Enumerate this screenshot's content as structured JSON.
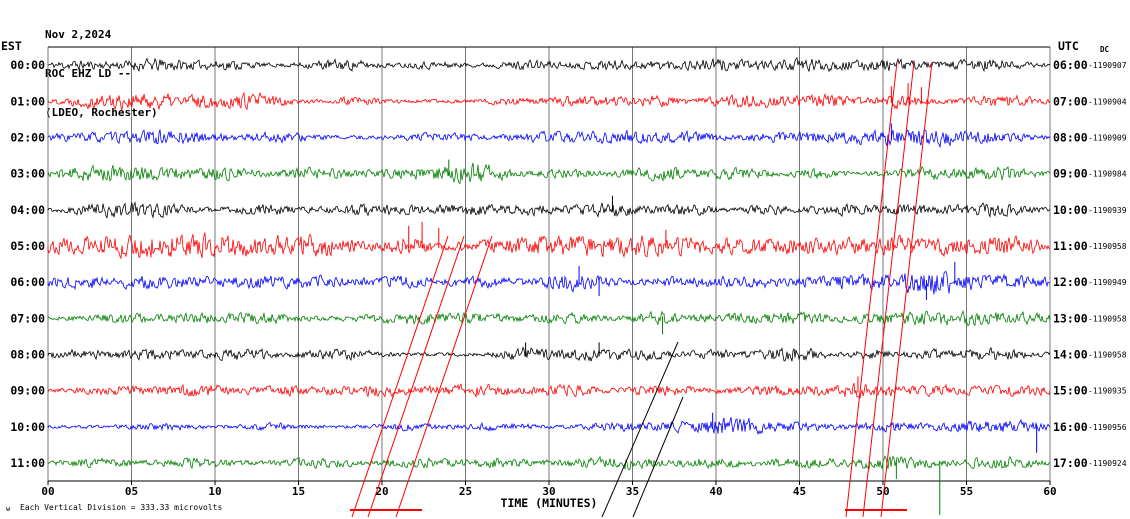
{
  "header": {
    "date": "Nov 2,2024",
    "station": "ROC EHZ LD --",
    "network": "(LDEO, Rochester)",
    "left_timezone": "EST",
    "right_timezone": "UTC",
    "dc_label": "DC"
  },
  "footer": {
    "scale_note": "Each Vertical Division =  333.33 microvolts",
    "corner_mark": "w"
  },
  "chart_data": {
    "type": "line",
    "title": "ROC EHZ LD -- (LDEO, Rochester) helicorder, Nov 2,2024",
    "xlabel": "TIME (MINUTES)",
    "x_range": [
      0,
      60
    ],
    "x_ticks": [
      "00",
      "05",
      "10",
      "15",
      "20",
      "25",
      "30",
      "35",
      "40",
      "45",
      "50",
      "55",
      "60"
    ],
    "grid_color": "#777777",
    "trace_color_cycle": [
      "#000000",
      "#ff0000",
      "#0000ff",
      "#008000"
    ],
    "rows": [
      {
        "est": "00:00",
        "utc": "06:00",
        "counter": "-1190907",
        "color": "#000000",
        "seed": 11,
        "base": 2.2,
        "bursts": [
          [
            1.5,
            1,
            4
          ],
          [
            6.5,
            2,
            6
          ],
          [
            11,
            1,
            4
          ],
          [
            17.5,
            1.5,
            5
          ],
          [
            23,
            1,
            3
          ],
          [
            29,
            1.5,
            4
          ],
          [
            33.5,
            1,
            5
          ],
          [
            36.5,
            1,
            4
          ],
          [
            40,
            1.5,
            6
          ],
          [
            45.5,
            2,
            6
          ],
          [
            50.5,
            1.5,
            5
          ],
          [
            56,
            1.5,
            7
          ]
        ],
        "spikes": []
      },
      {
        "est": "01:00",
        "utc": "07:00",
        "counter": "-1190904",
        "color": "#ff0000",
        "seed": 22,
        "base": 2.2,
        "bursts": [
          [
            3,
            1.5,
            5
          ],
          [
            6,
            2,
            7
          ],
          [
            10.5,
            2,
            6
          ],
          [
            13,
            1,
            5
          ],
          [
            18.5,
            1,
            4
          ],
          [
            27.5,
            1,
            3
          ],
          [
            32,
            1.5,
            5
          ],
          [
            36,
            1.5,
            5
          ],
          [
            42,
            2,
            6
          ],
          [
            46.5,
            1.5,
            6
          ],
          [
            51,
            1,
            7
          ],
          [
            57,
            1.5,
            6
          ]
        ],
        "spikes": [
          [
            50.5,
            15,
            1
          ],
          [
            51.5,
            18,
            1
          ],
          [
            52.3,
            14,
            1
          ]
        ]
      },
      {
        "est": "02:00",
        "utc": "08:00",
        "counter": "-1190909",
        "color": "#0000ff",
        "seed": 33,
        "base": 2.4,
        "bursts": [
          [
            2,
            1.5,
            4
          ],
          [
            7,
            2,
            7
          ],
          [
            13.5,
            1.5,
            5
          ],
          [
            23.5,
            1.5,
            4
          ],
          [
            30,
            1.5,
            5
          ],
          [
            34,
            1.5,
            6
          ],
          [
            38,
            1.5,
            5
          ],
          [
            44,
            1.5,
            5
          ],
          [
            50,
            2.5,
            7
          ],
          [
            53,
            1,
            6
          ],
          [
            56.5,
            1.5,
            5
          ]
        ],
        "spikes": [
          [
            50.5,
            14,
            1
          ]
        ]
      },
      {
        "est": "03:00",
        "utc": "09:00",
        "counter": "-1190984",
        "color": "#008000",
        "seed": 44,
        "base": 2.4,
        "bursts": [
          [
            2.5,
            1.5,
            6
          ],
          [
            6,
            2,
            7
          ],
          [
            10.5,
            1.5,
            6
          ],
          [
            16,
            1.5,
            5
          ],
          [
            23.5,
            2.5,
            7
          ],
          [
            26,
            1,
            6
          ],
          [
            31,
            1,
            4
          ],
          [
            36.5,
            1.5,
            6
          ],
          [
            41,
            1.5,
            5
          ],
          [
            46,
            1,
            4
          ],
          [
            52.5,
            1.5,
            6
          ],
          [
            57,
            1.5,
            6
          ]
        ],
        "spikes": [
          [
            24,
            14,
            1
          ]
        ]
      },
      {
        "est": "04:00",
        "utc": "10:00",
        "counter": "-1190939",
        "color": "#000000",
        "seed": 55,
        "base": 2.2,
        "bursts": [
          [
            3.5,
            1.5,
            7
          ],
          [
            6.5,
            1.5,
            6
          ],
          [
            13,
            1.5,
            5
          ],
          [
            19.5,
            2,
            5
          ],
          [
            25,
            1.5,
            5
          ],
          [
            29,
            1.5,
            5
          ],
          [
            33.5,
            1.5,
            7
          ],
          [
            38,
            1.5,
            5
          ],
          [
            43,
            1,
            4
          ],
          [
            47.5,
            1.5,
            5
          ],
          [
            52,
            1.5,
            5
          ],
          [
            56.5,
            1.5,
            6
          ]
        ],
        "spikes": [
          [
            33.8,
            14,
            1
          ]
        ]
      },
      {
        "est": "05:00",
        "utc": "11:00",
        "counter": "-1190958",
        "color": "#ff0000",
        "seed": 66,
        "base": 3.5,
        "bursts": [
          [
            3,
            3,
            7
          ],
          [
            8,
            3,
            8
          ],
          [
            13,
            3,
            7
          ],
          [
            16.5,
            1.5,
            6
          ],
          [
            21.5,
            1,
            8
          ],
          [
            29,
            2.5,
            7
          ],
          [
            33,
            2,
            7
          ],
          [
            36.5,
            1.5,
            8
          ],
          [
            40,
            1.5,
            5
          ],
          [
            45,
            2.5,
            7
          ],
          [
            50,
            2,
            6
          ],
          [
            54,
            2,
            7
          ],
          [
            58,
            1.5,
            7
          ]
        ],
        "spikes": [
          [
            21.6,
            20,
            1
          ],
          [
            22.4,
            24,
            1
          ],
          [
            23.4,
            18,
            1
          ],
          [
            37,
            16,
            1
          ]
        ]
      },
      {
        "est": "06:00",
        "utc": "12:00",
        "counter": "-1190949",
        "color": "#0000ff",
        "seed": 77,
        "base": 2.8,
        "bursts": [
          [
            2,
            2,
            5
          ],
          [
            6.5,
            2,
            5
          ],
          [
            12,
            2,
            5
          ],
          [
            16,
            1.5,
            5
          ],
          [
            21,
            1.5,
            5
          ],
          [
            26,
            1.5,
            4
          ],
          [
            31.5,
            1.5,
            8
          ],
          [
            38,
            1.5,
            4
          ],
          [
            42,
            1.5,
            5
          ],
          [
            47,
            1.5,
            5
          ],
          [
            51.5,
            2,
            8
          ],
          [
            54,
            1.5,
            8
          ],
          [
            58,
            1.5,
            6
          ]
        ],
        "spikes": [
          [
            31.8,
            16,
            1
          ],
          [
            33,
            14,
            -1
          ],
          [
            52.6,
            18,
            -1
          ],
          [
            54.3,
            20,
            1
          ]
        ]
      },
      {
        "est": "07:00",
        "utc": "13:00",
        "counter": "-1190958",
        "color": "#008000",
        "seed": 88,
        "base": 2.6,
        "bursts": [
          [
            4.5,
            1.5,
            4
          ],
          [
            9,
            1.5,
            4
          ],
          [
            13,
            1.5,
            5
          ],
          [
            21.5,
            2,
            5
          ],
          [
            26,
            1.5,
            4
          ],
          [
            31,
            1.5,
            4
          ],
          [
            36.5,
            1,
            6
          ],
          [
            41,
            1.5,
            4
          ],
          [
            45,
            1.5,
            5
          ],
          [
            50,
            1.5,
            4
          ],
          [
            54,
            2,
            7
          ],
          [
            58,
            1.5,
            5
          ]
        ],
        "spikes": [
          [
            36.8,
            16,
            -1
          ]
        ]
      },
      {
        "est": "08:00",
        "utc": "14:00",
        "counter": "-1190958",
        "color": "#000000",
        "seed": 99,
        "base": 2.2,
        "bursts": [
          [
            2,
            1.5,
            4
          ],
          [
            6.5,
            1.5,
            5
          ],
          [
            11.5,
            1.5,
            6
          ],
          [
            17.5,
            1.5,
            5
          ],
          [
            28.5,
            1,
            7
          ],
          [
            32.5,
            1.5,
            7
          ],
          [
            36,
            1,
            4
          ],
          [
            40,
            1,
            4
          ],
          [
            44.5,
            1.5,
            7
          ],
          [
            49.5,
            1,
            4
          ],
          [
            53,
            1,
            4
          ],
          [
            56.5,
            1.5,
            6
          ]
        ],
        "spikes": [
          [
            28.6,
            12,
            1
          ],
          [
            33,
            12,
            1
          ]
        ]
      },
      {
        "est": "09:00",
        "utc": "15:00",
        "counter": "-1190935",
        "color": "#ff0000",
        "seed": 110,
        "base": 2.4,
        "bursts": [
          [
            4,
            1.5,
            4
          ],
          [
            9,
            1.5,
            6
          ],
          [
            14,
            1.5,
            4
          ],
          [
            19.5,
            2,
            5
          ],
          [
            25.5,
            2,
            5
          ],
          [
            31,
            1.5,
            5
          ],
          [
            37,
            1.5,
            5
          ],
          [
            43,
            1.5,
            4
          ],
          [
            48.5,
            2,
            7
          ],
          [
            53.5,
            1.5,
            4
          ],
          [
            58,
            1.5,
            5
          ]
        ],
        "spikes": [
          [
            48.5,
            14,
            1
          ]
        ]
      },
      {
        "est": "10:00",
        "utc": "16:00",
        "counter": "-1190956",
        "color": "#0000ff",
        "seed": 121,
        "base": 2.0,
        "bursts": [
          [
            7,
            1.5,
            3
          ],
          [
            13.5,
            1.5,
            3
          ],
          [
            21.5,
            1.5,
            3
          ],
          [
            27,
            1.5,
            3
          ],
          [
            34,
            1.5,
            4
          ],
          [
            39.5,
            2,
            7
          ],
          [
            41.5,
            1,
            6
          ],
          [
            45,
            1.5,
            4
          ],
          [
            50.5,
            1.5,
            4
          ],
          [
            55,
            1.5,
            4
          ],
          [
            58,
            1.5,
            6
          ]
        ],
        "spikes": [
          [
            39.8,
            14,
            1
          ],
          [
            59.2,
            26,
            -1
          ]
        ]
      },
      {
        "est": "11:00",
        "utc": "17:00",
        "counter": "-1190924",
        "color": "#008000",
        "seed": 132,
        "base": 2.4,
        "bursts": [
          [
            3,
            1.5,
            4
          ],
          [
            9,
            1.5,
            4
          ],
          [
            16,
            1.5,
            4
          ],
          [
            22,
            1.5,
            4
          ],
          [
            27,
            1.5,
            4
          ],
          [
            34,
            2,
            6
          ],
          [
            40,
            1.5,
            4
          ],
          [
            45,
            1.5,
            4
          ],
          [
            50.5,
            2,
            6
          ],
          [
            57,
            1.5,
            6
          ]
        ],
        "spikes": [
          [
            50.8,
            16,
            -1
          ],
          [
            53.4,
            52,
            -1
          ]
        ]
      }
    ],
    "overlay_lines": [
      [
        352,
        517,
        448,
        236,
        "#ff0000"
      ],
      [
        368,
        517,
        464,
        236,
        "#ff0000"
      ],
      [
        396,
        517,
        492,
        236,
        "#ff0000"
      ],
      [
        846,
        517,
        897,
        62,
        "#ff0000"
      ],
      [
        863,
        517,
        914,
        62,
        "#ff0000"
      ],
      [
        881,
        517,
        932,
        62,
        "#ff0000"
      ],
      [
        602,
        517,
        678,
        342,
        "#000000"
      ],
      [
        633,
        517,
        683,
        397,
        "#000000"
      ]
    ],
    "underline_segments": [
      [
        350,
        422,
        "#ff0000"
      ],
      [
        845,
        907,
        "#ff0000"
      ]
    ]
  }
}
